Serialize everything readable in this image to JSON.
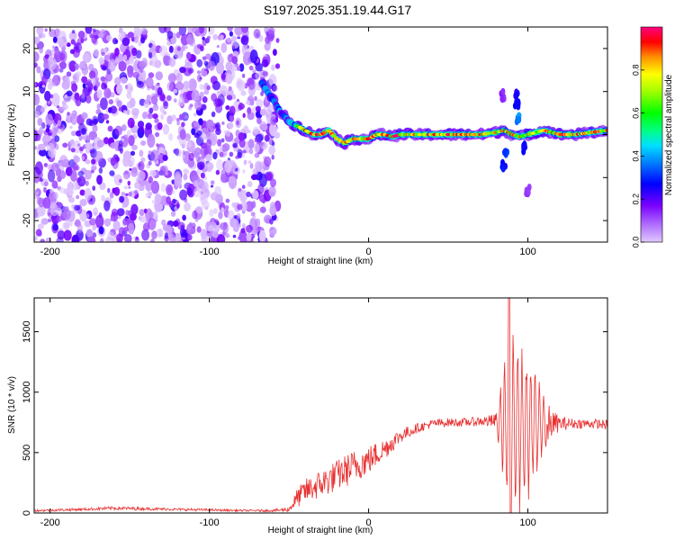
{
  "title": "S197.2025.351.19.44.G17",
  "chart_data": [
    {
      "type": "heatmap",
      "xlabel": "Height of straight line (km)",
      "ylabel": "Frequency (Hz)",
      "xlim": [
        -210,
        150
      ],
      "ylim": [
        -25,
        25
      ],
      "xticks": [
        -200,
        -100,
        0,
        100
      ],
      "yticks": [
        -20,
        -10,
        0,
        10,
        20
      ],
      "noise_region_x": [
        -210,
        -57
      ],
      "colorbar": {
        "label": "Normalized spectral amplitude",
        "range": [
          0,
          1
        ],
        "ticks": [
          0.0,
          0.2,
          0.4,
          0.6,
          0.8
        ]
      },
      "ridge": {
        "x": [
          -67,
          -62,
          -58,
          -55,
          -52,
          -50,
          -45,
          -40,
          -35,
          -30,
          -25,
          -20,
          -15,
          -10,
          -5,
          0,
          5,
          10,
          15,
          20,
          30,
          40,
          50,
          60,
          70,
          80,
          85,
          90,
          95,
          100,
          110,
          120,
          130,
          140,
          150
        ],
        "y": [
          12,
          9,
          7,
          5,
          4,
          3,
          2,
          1,
          0,
          0,
          1,
          -1,
          -2,
          -1,
          -1,
          -1,
          0,
          0,
          -0.5,
          0,
          0,
          0,
          0,
          0,
          0,
          0.5,
          1,
          0,
          -0.5,
          0,
          1,
          0,
          0,
          0.5,
          1
        ]
      }
    },
    {
      "type": "line",
      "xlabel": "Height of straight line (km)",
      "ylabel": "SNR (10 * v/v)",
      "xlim": [
        -210,
        150
      ],
      "ylim": [
        0,
        1780
      ],
      "xticks": [
        -200,
        -100,
        0,
        100
      ],
      "yticks": [
        0,
        500,
        1000,
        1500
      ],
      "color": "#e83030",
      "envelope": {
        "x": [
          -210,
          -180,
          -160,
          -120,
          -100,
          -80,
          -60,
          -50,
          -45,
          -40,
          -30,
          -20,
          -10,
          0,
          10,
          20,
          30,
          40,
          50,
          60,
          70,
          80,
          85,
          88,
          90,
          92,
          95,
          100,
          105,
          110,
          115,
          120,
          130,
          140,
          150
        ],
        "base": [
          20,
          30,
          40,
          30,
          25,
          20,
          20,
          30,
          120,
          180,
          240,
          310,
          380,
          440,
          530,
          640,
          700,
          740,
          750,
          750,
          760,
          760,
          750,
          740,
          740,
          740,
          740,
          740,
          740,
          740,
          740,
          740,
          740,
          740,
          730
        ],
        "amp": [
          10,
          10,
          15,
          10,
          10,
          8,
          10,
          20,
          80,
          100,
          120,
          130,
          140,
          120,
          90,
          60,
          40,
          35,
          35,
          35,
          40,
          60,
          500,
          700,
          900,
          800,
          700,
          550,
          400,
          250,
          120,
          60,
          40,
          40,
          40
        ]
      }
    }
  ],
  "colors": {
    "line": "#e83030",
    "noise": "#8a2be2"
  }
}
